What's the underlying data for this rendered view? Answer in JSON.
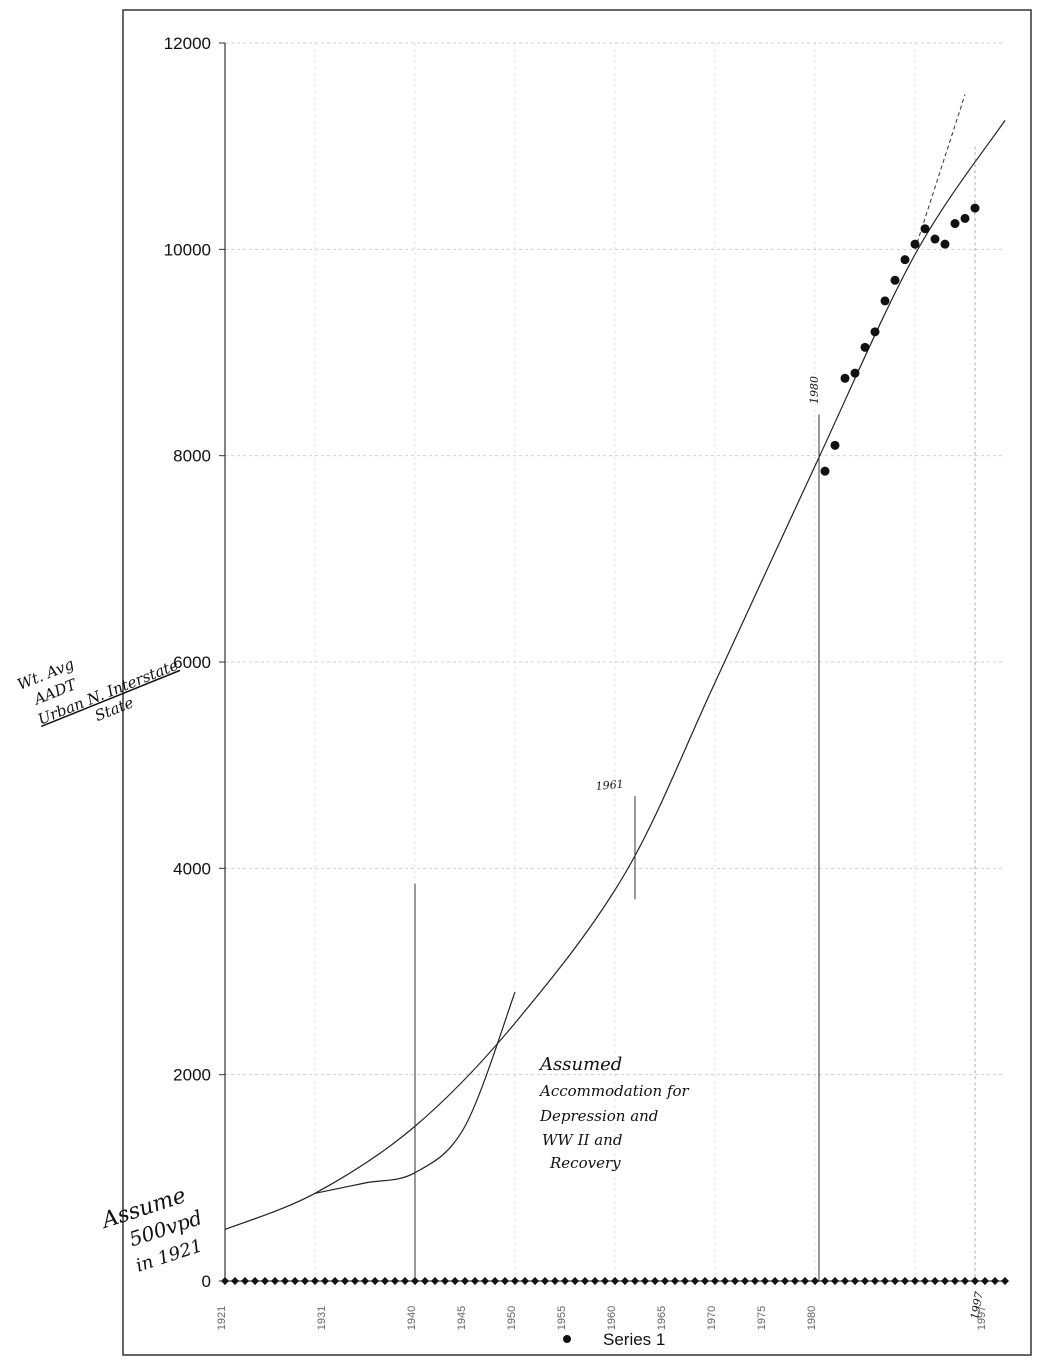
{
  "chart_data": {
    "type": "scatter",
    "title": "",
    "xlabel": "",
    "ylabel_handwritten": [
      "Wt. Avg",
      "AADT",
      "Urban N. Interstate",
      "State"
    ],
    "ylim": [
      0,
      12000
    ],
    "y_ticks": [
      0,
      2000,
      4000,
      6000,
      8000,
      10000,
      12000
    ],
    "x_range": [
      1921,
      2000
    ],
    "x_tick_labels": [
      "1921",
      "1931",
      "1940",
      "1945",
      "1950",
      "1955",
      "1960",
      "1965",
      "1970",
      "1975",
      "1980",
      "1997"
    ],
    "legend": {
      "position": "bottom-center",
      "entries": [
        "Series 1"
      ]
    },
    "grid": true,
    "series": [
      {
        "name": "Series 1",
        "points": [
          {
            "x": 1981,
            "y": 7850
          },
          {
            "x": 1982,
            "y": 8100
          },
          {
            "x": 1983,
            "y": 8750
          },
          {
            "x": 1984,
            "y": 8800
          },
          {
            "x": 1985,
            "y": 9050
          },
          {
            "x": 1986,
            "y": 9200
          },
          {
            "x": 1987,
            "y": 9500
          },
          {
            "x": 1988,
            "y": 9700
          },
          {
            "x": 1989,
            "y": 9900
          },
          {
            "x": 1990,
            "y": 10050
          },
          {
            "x": 1991,
            "y": 10200
          },
          {
            "x": 1992,
            "y": 10100
          },
          {
            "x": 1993,
            "y": 10050
          },
          {
            "x": 1994,
            "y": 10250
          },
          {
            "x": 1995,
            "y": 10300
          },
          {
            "x": 1996,
            "y": 10400
          }
        ]
      }
    ],
    "trend_line": [
      {
        "x": 1921,
        "y": 500
      },
      {
        "x": 1930,
        "y": 850
      },
      {
        "x": 1940,
        "y": 1500
      },
      {
        "x": 1950,
        "y": 2500
      },
      {
        "x": 1961,
        "y": 3950
      },
      {
        "x": 1970,
        "y": 5800
      },
      {
        "x": 1980,
        "y": 7900
      },
      {
        "x": 1990,
        "y": 9950
      },
      {
        "x": 1999,
        "y": 11250
      }
    ],
    "accommodation_curve": [
      {
        "x": 1930,
        "y": 850
      },
      {
        "x": 1935,
        "y": 950
      },
      {
        "x": 1940,
        "y": 1050
      },
      {
        "x": 1945,
        "y": 1500
      },
      {
        "x": 1950,
        "y": 2800
      }
    ],
    "annotations": {
      "assume": [
        "Assume",
        "500vpd",
        "in 1921"
      ],
      "assumed_accommodation": [
        "Assumed",
        "Accommodation for",
        "Depression and",
        "WW II and",
        "Recovery"
      ],
      "year_1961": "1961",
      "year_1980": "1980",
      "year_1997": "1997"
    }
  }
}
